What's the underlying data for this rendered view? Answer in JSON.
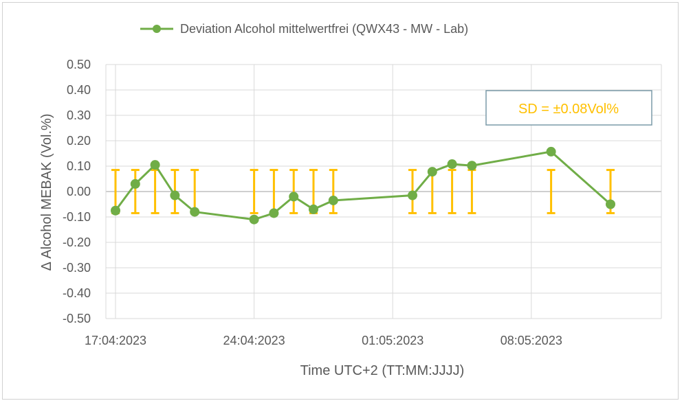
{
  "chart_data": {
    "type": "scatter",
    "title": "",
    "legend": {
      "position": "top",
      "entries": [
        "Deviation Alcohol mittelwertfrei (QWX43 - MW - Lab)"
      ]
    },
    "xlabel": "Time UTC+2 (TT:MM:JJJJ)",
    "ylabel": "Δ Alcohol MEBAK  (Vol.%)",
    "ylim": [
      -0.5,
      0.5
    ],
    "yticks": [
      "0.50",
      "0.40",
      "0.30",
      "0.20",
      "0.10",
      "0.00",
      "-0.10",
      "-0.20",
      "-0.30",
      "-0.40",
      "-0.50"
    ],
    "xticks": [
      "17:04:2023",
      "24:04:2023",
      "01:05:2023",
      "08:05:2023"
    ],
    "grid": true,
    "annotation": "SD = ±0.08Vol%",
    "error_bar": 0.085,
    "colors": {
      "series": "#70AD47",
      "error": "#FFC000",
      "grid": "#d9d9d9"
    },
    "series": [
      {
        "name": "Deviation Alcohol mittelwertfrei (QWX43 - MW - Lab)",
        "x": [
          "17:04:2023",
          "18:04:2023",
          "19:04:2023",
          "20:04:2023",
          "21:04:2023",
          "24:04:2023",
          "25:04:2023",
          "26:04:2023",
          "27:04:2023",
          "28:04:2023",
          "02:05:2023",
          "03:05:2023",
          "04:05:2023",
          "05:05:2023",
          "09:05:2023",
          "12:05:2023"
        ],
        "values": [
          -0.075,
          0.03,
          0.105,
          -0.015,
          -0.08,
          -0.11,
          -0.085,
          -0.02,
          -0.07,
          -0.035,
          -0.015,
          0.078,
          0.108,
          0.102,
          0.157,
          -0.05
        ]
      }
    ]
  }
}
